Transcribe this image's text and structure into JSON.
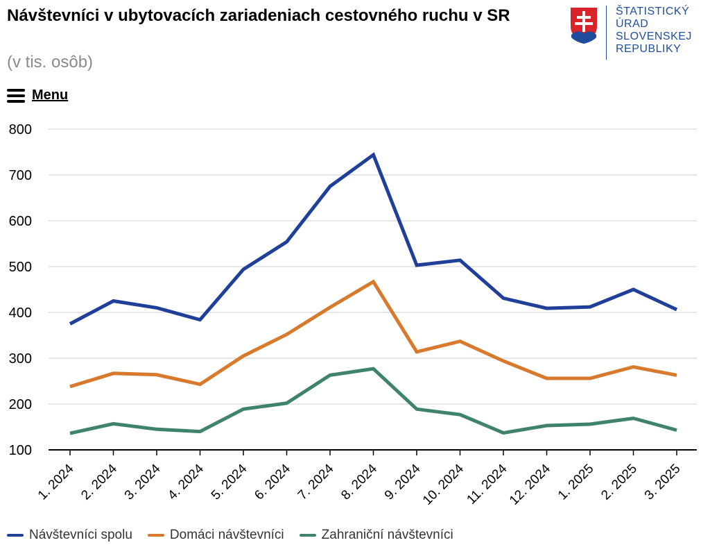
{
  "header": {
    "title": "Návštevníci v ubytovacích zariadeniach cestovného ruchu v SR",
    "subtitle": "(v tis. osôb)",
    "menu_label": "Menu"
  },
  "logo": {
    "lines": [
      "ŠTATISTICKÝ",
      "ÚRAD",
      "SLOVENSKEJ",
      "REPUBLIKY"
    ],
    "brand_color": "#1f4d9b",
    "emblem_color": "#d8232a"
  },
  "chart_data": {
    "type": "line",
    "categories": [
      "1. 2024",
      "2. 2024",
      "3. 2024",
      "4. 2024",
      "5. 2024",
      "6. 2024",
      "7. 2024",
      "8. 2024",
      "9. 2024",
      "10. 2024",
      "11. 2024",
      "12. 2024",
      "1. 2025",
      "2. 2025",
      "3. 2025"
    ],
    "series": [
      {
        "name": "Návštevníci spolu",
        "color": "#1f3f99",
        "values": [
          375,
          425,
          410,
          384,
          494,
          554,
          675,
          744,
          503,
          514,
          431,
          409,
          412,
          450,
          406
        ]
      },
      {
        "name": "Domáci návštevníci",
        "color": "#d77a2d",
        "values": [
          238,
          267,
          264,
          243,
          305,
          352,
          411,
          467,
          314,
          337,
          294,
          256,
          256,
          281,
          263
        ]
      },
      {
        "name": "Zahraniční návštevníci",
        "color": "#3f8468",
        "values": [
          136,
          157,
          145,
          140,
          189,
          202,
          263,
          277,
          189,
          177,
          137,
          153,
          156,
          169,
          143
        ]
      }
    ],
    "ylim": [
      100,
      800
    ],
    "yticks": [
      100,
      200,
      300,
      400,
      500,
      600,
      700,
      800
    ],
    "grid": true,
    "legend_position": "bottom-left"
  }
}
